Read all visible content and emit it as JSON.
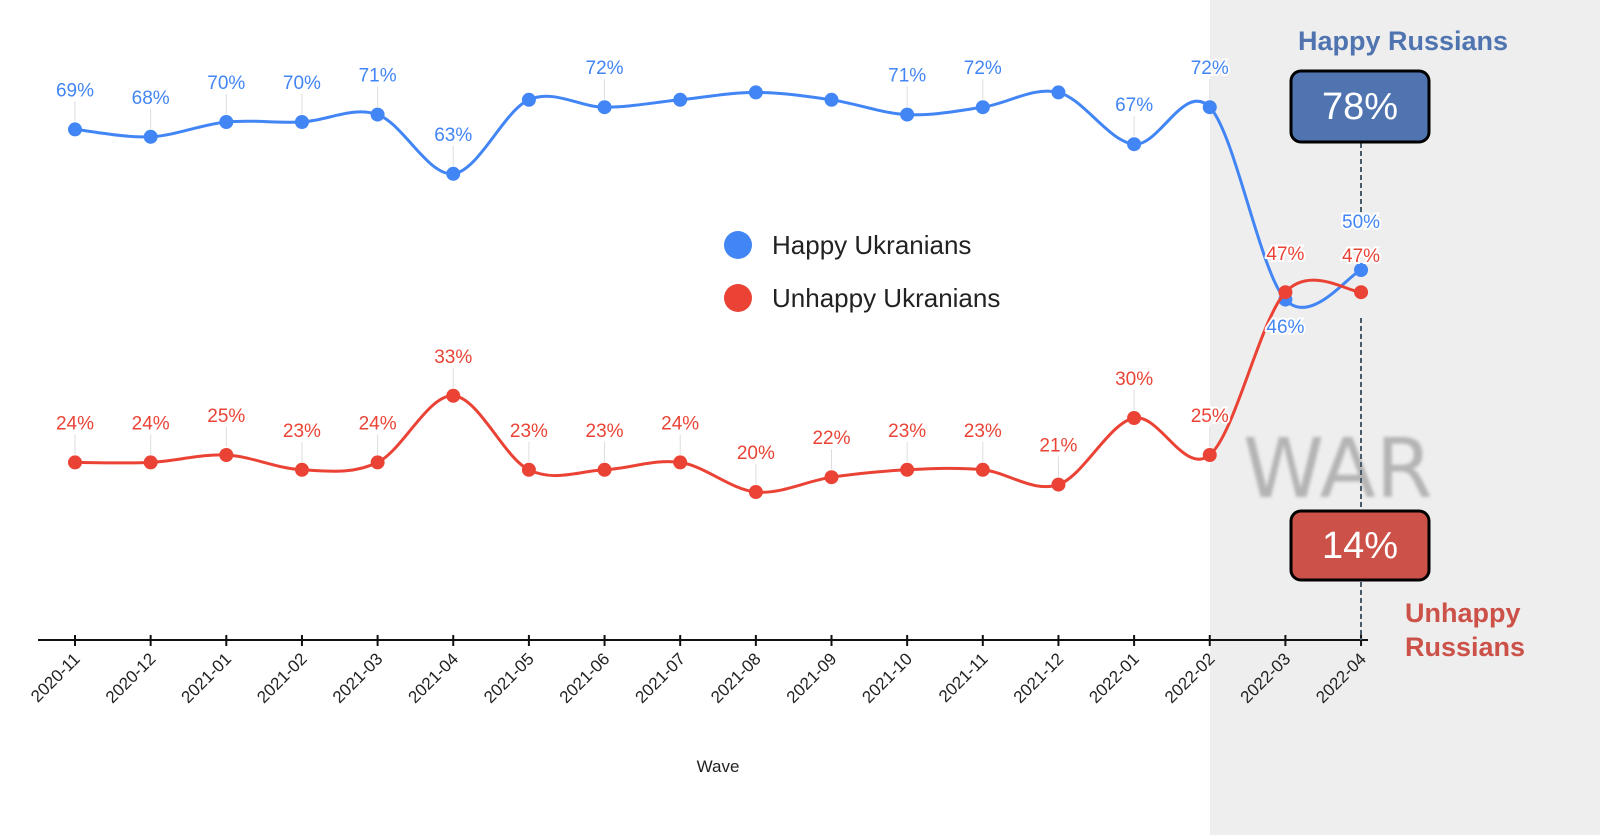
{
  "chart_data": {
    "type": "line",
    "xlabel": "Wave",
    "ylabel": "",
    "ylim": [
      0,
      86
    ],
    "grid": false,
    "legend_placement": "center",
    "categories": [
      "2020-11",
      "2020-12",
      "2021-01",
      "2021-02",
      "2021-03",
      "2021-04",
      "2021-05",
      "2021-06",
      "2021-07",
      "2021-08",
      "2021-09",
      "2021-10",
      "2021-11",
      "2021-12",
      "2022-01",
      "2022-02",
      "2022-03",
      "2022-04"
    ],
    "series": [
      {
        "name": "Happy Ukranians",
        "color": "#4285f4",
        "values": [
          69,
          68,
          70,
          70,
          71,
          63,
          73,
          72,
          73,
          74,
          73,
          71,
          72,
          74,
          67,
          72,
          46,
          50
        ],
        "labels": [
          "69%",
          "68%",
          "70%",
          "70%",
          "71%",
          "63%",
          null,
          "72%",
          null,
          null,
          null,
          "71%",
          "72%",
          null,
          "67%",
          "72%",
          "46%",
          "50%"
        ]
      },
      {
        "name": "Unhappy Ukranians",
        "color": "#ea4335",
        "values": [
          24,
          24,
          25,
          23,
          24,
          33,
          23,
          23,
          24,
          20,
          22,
          23,
          23,
          21,
          30,
          25,
          47,
          47
        ],
        "labels": [
          "24%",
          "24%",
          "25%",
          "23%",
          "24%",
          "33%",
          "23%",
          "23%",
          "24%",
          "20%",
          "22%",
          "23%",
          "23%",
          "21%",
          "30%",
          "25%",
          "47%",
          "47%"
        ]
      }
    ],
    "shaded_region": {
      "from": "2022-02",
      "to": "2022-04",
      "label": "WAR",
      "color": "#eeeeee"
    },
    "annotations": [
      {
        "title": "Happy Russians",
        "value": "78%",
        "color": "#4f74b0",
        "at": "2022-04"
      },
      {
        "title": "Unhappy Russians",
        "title_lines": [
          "Unhappy",
          "Russians"
        ],
        "value": "14%",
        "color": "#cc5149",
        "at": "2022-04"
      }
    ]
  }
}
